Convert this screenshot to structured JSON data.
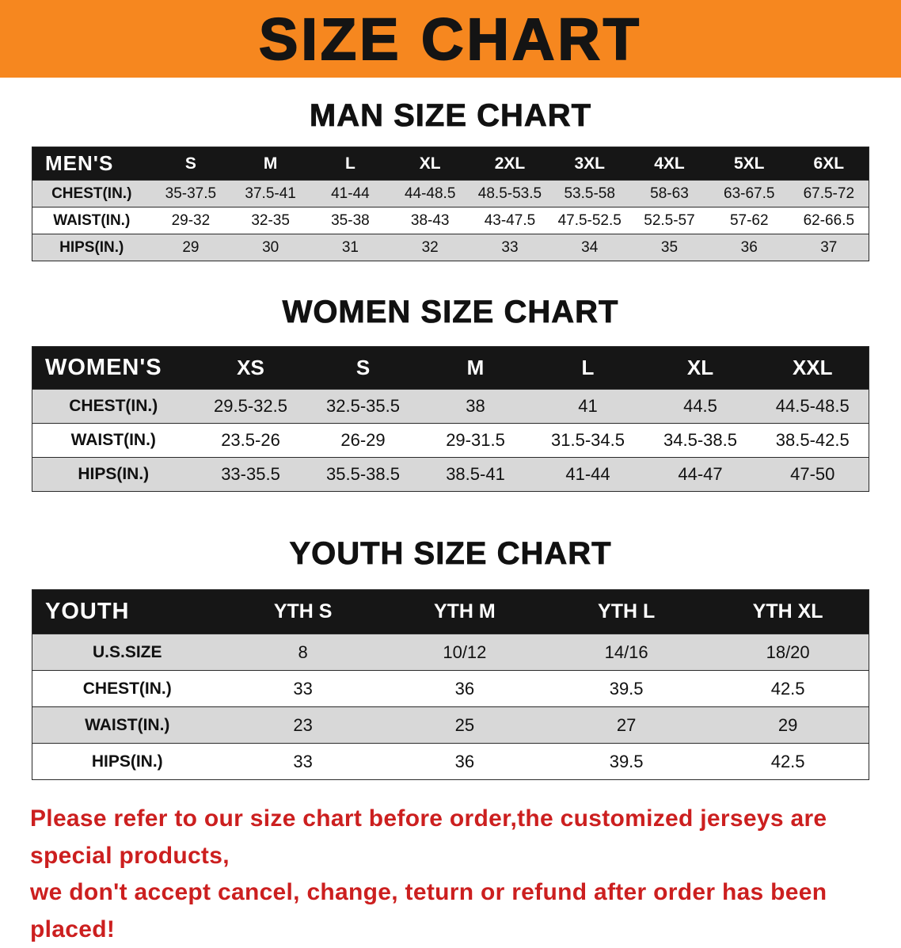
{
  "banner": {
    "title": "SIZE CHART",
    "bg_color": "#f6871f",
    "text_color": "#141414"
  },
  "sections": [
    {
      "heading": "MAN SIZE CHART",
      "table": {
        "header": [
          "MEN'S",
          "S",
          "M",
          "L",
          "XL",
          "2XL",
          "3XL",
          "4XL",
          "5XL",
          "6XL"
        ],
        "rows": [
          [
            "CHEST(IN.)",
            "35-37.5",
            "37.5-41",
            "41-44",
            "44-48.5",
            "48.5-53.5",
            "53.5-58",
            "58-63",
            "63-67.5",
            "67.5-72"
          ],
          [
            "WAIST(IN.)",
            "29-32",
            "32-35",
            "35-38",
            "38-43",
            "43-47.5",
            "47.5-52.5",
            "52.5-57",
            "57-62",
            "62-66.5"
          ],
          [
            "HIPS(IN.)",
            "29",
            "30",
            "31",
            "32",
            "33",
            "34",
            "35",
            "36",
            "37"
          ]
        ]
      }
    },
    {
      "heading": "WOMEN SIZE CHART",
      "table": {
        "header": [
          "WOMEN'S",
          "XS",
          "S",
          "M",
          "L",
          "XL",
          "XXL"
        ],
        "rows": [
          [
            "CHEST(IN.)",
            "29.5-32.5",
            "32.5-35.5",
            "38",
            "41",
            "44.5",
            "44.5-48.5"
          ],
          [
            "WAIST(IN.)",
            "23.5-26",
            "26-29",
            "29-31.5",
            "31.5-34.5",
            "34.5-38.5",
            "38.5-42.5"
          ],
          [
            "HIPS(IN.)",
            "33-35.5",
            "35.5-38.5",
            "38.5-41",
            "41-44",
            "44-47",
            "47-50"
          ]
        ]
      }
    },
    {
      "heading": "YOUTH SIZE CHART",
      "table": {
        "header": [
          "YOUTH",
          "YTH S",
          "YTH M",
          "YTH L",
          "YTH XL"
        ],
        "rows": [
          [
            "U.S.SIZE",
            "8",
            "10/12",
            "14/16",
            "18/20"
          ],
          [
            "CHEST(IN.)",
            "33",
            "36",
            "39.5",
            "42.5"
          ],
          [
            "WAIST(IN.)",
            "23",
            "25",
            "27",
            "29"
          ],
          [
            "HIPS(IN.)",
            "33",
            "36",
            "39.5",
            "42.5"
          ]
        ]
      }
    }
  ],
  "footer": {
    "lines": [
      "Please refer to our size chart before order,the customized jerseys are special products,",
      "we don't accept cancel, change, teturn or refund after order has been placed!"
    ],
    "text_color": "#cc1f1f"
  }
}
